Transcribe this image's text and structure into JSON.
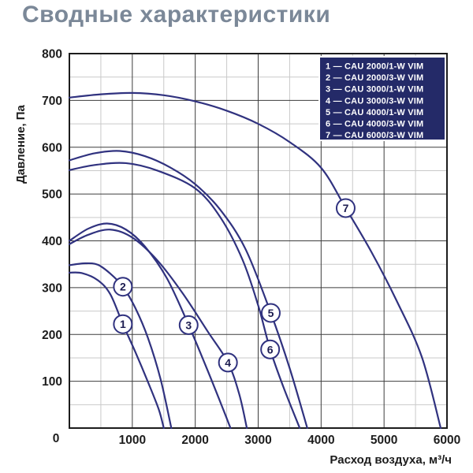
{
  "title": "Сводные характеристики",
  "chart_data": {
    "type": "line",
    "title": "Сводные характеристики",
    "xlabel": "Расход воздуха, м³/ч",
    "ylabel": "Давление, Па",
    "xlim": [
      0,
      6000
    ],
    "ylim": [
      0,
      800
    ],
    "x_major_step": 1000,
    "x_minor_step": 500,
    "y_major_step": 100,
    "y_minor_step": 50,
    "grid": true,
    "x_ticks": [
      "0",
      "1000",
      "2000",
      "3000",
      "4000",
      "5000",
      "6000"
    ],
    "y_ticks": [
      "0",
      "100",
      "200",
      "300",
      "400",
      "500",
      "600",
      "700",
      "800"
    ],
    "legend_position": "top-right",
    "legend_separator": "—",
    "series": [
      {
        "id": "1",
        "name": "CAU 2000/1-W VIM",
        "marker": {
          "x": 850,
          "y": 222
        },
        "points": [
          [
            0,
            332
          ],
          [
            200,
            331
          ],
          [
            450,
            316
          ],
          [
            650,
            286
          ],
          [
            850,
            222
          ],
          [
            1050,
            162
          ],
          [
            1250,
            98
          ],
          [
            1420,
            40
          ],
          [
            1500,
            0
          ]
        ]
      },
      {
        "id": "2",
        "name": "CAU 2000/3-W VIM",
        "marker": {
          "x": 850,
          "y": 302
        },
        "points": [
          [
            0,
            348
          ],
          [
            250,
            352
          ],
          [
            450,
            349
          ],
          [
            650,
            330
          ],
          [
            850,
            302
          ],
          [
            1050,
            256
          ],
          [
            1250,
            192
          ],
          [
            1450,
            104
          ],
          [
            1620,
            0
          ]
        ]
      },
      {
        "id": "3",
        "name": "CAU 3000/1-W VIM",
        "marker": {
          "x": 1895,
          "y": 220
        },
        "points": [
          [
            0,
            400
          ],
          [
            300,
            426
          ],
          [
            600,
            437
          ],
          [
            900,
            424
          ],
          [
            1200,
            388
          ],
          [
            1550,
            320
          ],
          [
            1895,
            220
          ],
          [
            2200,
            122
          ],
          [
            2450,
            38
          ],
          [
            2560,
            0
          ]
        ]
      },
      {
        "id": "4",
        "name": "CAU 3000/3-W VIM",
        "marker": {
          "x": 2520,
          "y": 140
        },
        "points": [
          [
            0,
            393
          ],
          [
            300,
            413
          ],
          [
            650,
            424
          ],
          [
            1000,
            407
          ],
          [
            1400,
            358
          ],
          [
            1800,
            288
          ],
          [
            2200,
            206
          ],
          [
            2520,
            140
          ],
          [
            2700,
            72
          ],
          [
            2820,
            0
          ]
        ]
      },
      {
        "id": "5",
        "name": "CAU 4000/1-W VIM",
        "marker": {
          "x": 3200,
          "y": 246
        },
        "points": [
          [
            0,
            572
          ],
          [
            400,
            587
          ],
          [
            800,
            592
          ],
          [
            1200,
            581
          ],
          [
            1600,
            557
          ],
          [
            2000,
            521
          ],
          [
            2400,
            466
          ],
          [
            2800,
            382
          ],
          [
            3200,
            246
          ],
          [
            3500,
            128
          ],
          [
            3780,
            0
          ]
        ]
      },
      {
        "id": "6",
        "name": "CAU 4000/3-W VIM",
        "marker": {
          "x": 3190,
          "y": 168
        },
        "points": [
          [
            0,
            551
          ],
          [
            400,
            562
          ],
          [
            900,
            566
          ],
          [
            1400,
            550
          ],
          [
            2000,
            512
          ],
          [
            2400,
            450
          ],
          [
            2750,
            360
          ],
          [
            3000,
            262
          ],
          [
            3190,
            168
          ],
          [
            3400,
            88
          ],
          [
            3660,
            0
          ]
        ]
      },
      {
        "id": "7",
        "name": "CAU 6000/3-W VIM",
        "marker": {
          "x": 4390,
          "y": 470
        },
        "points": [
          [
            0,
            706
          ],
          [
            500,
            713
          ],
          [
            1000,
            716
          ],
          [
            1500,
            711
          ],
          [
            2000,
            698
          ],
          [
            2500,
            678
          ],
          [
            3000,
            650
          ],
          [
            3500,
            611
          ],
          [
            4000,
            556
          ],
          [
            4390,
            470
          ],
          [
            4800,
            376
          ],
          [
            5200,
            272
          ],
          [
            5600,
            152
          ],
          [
            5900,
            0
          ]
        ]
      }
    ],
    "colors": {
      "curve": "#30327f",
      "legend_bg": "#242a68",
      "legend_text": "#ffffff",
      "grid_major": "#3d3d3d",
      "grid_minor": "#c9c9c9",
      "axis": "#1c1c1c",
      "tick_text": "#1d1d1d",
      "marker_fill": "#ffffff",
      "marker_text": "#1c1c50",
      "title_text": "#7b8898"
    }
  }
}
